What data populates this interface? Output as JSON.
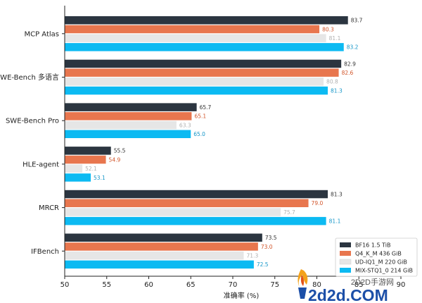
{
  "chart_data": {
    "type": "bar",
    "orientation": "horizontal",
    "categories": [
      "MCP Atlas",
      "SWE-Bench 多语言",
      "SWE-Bench Pro",
      "HLE-agent",
      "MRCR",
      "IFBench"
    ],
    "series": [
      {
        "name": "BF16  1.5 TiB",
        "color": "#2b3540",
        "values": [
          83.7,
          82.9,
          65.7,
          55.5,
          81.3,
          73.5
        ]
      },
      {
        "name": "Q4_K_M  436 GiB",
        "color": "#e8764e",
        "values": [
          80.3,
          82.6,
          65.1,
          54.9,
          79.0,
          73.0
        ]
      },
      {
        "name": "UD-IQ1_M  220 GiB",
        "color": "#e6e6e6",
        "values": [
          81.1,
          80.8,
          63.3,
          52.1,
          75.7,
          71.3
        ]
      },
      {
        "name": "MIX-STQ1_0  214 GiB",
        "color": "#0cbaf2",
        "values": [
          83.2,
          81.3,
          65.0,
          53.1,
          81.1,
          72.5
        ]
      }
    ],
    "value_label_colors": [
      "#333333",
      "#d2552a",
      "#b0b0b0",
      "#1496c8"
    ],
    "xlabel": "准确率 (%)",
    "xlim": [
      50,
      90
    ],
    "xticks": [
      50,
      55,
      60,
      65,
      70,
      75,
      80,
      85,
      90
    ],
    "legend_position": "bottom-right",
    "grid": false
  },
  "watermark": {
    "site_cn": "2D2D手游网",
    "site": "2d2d.COM"
  }
}
